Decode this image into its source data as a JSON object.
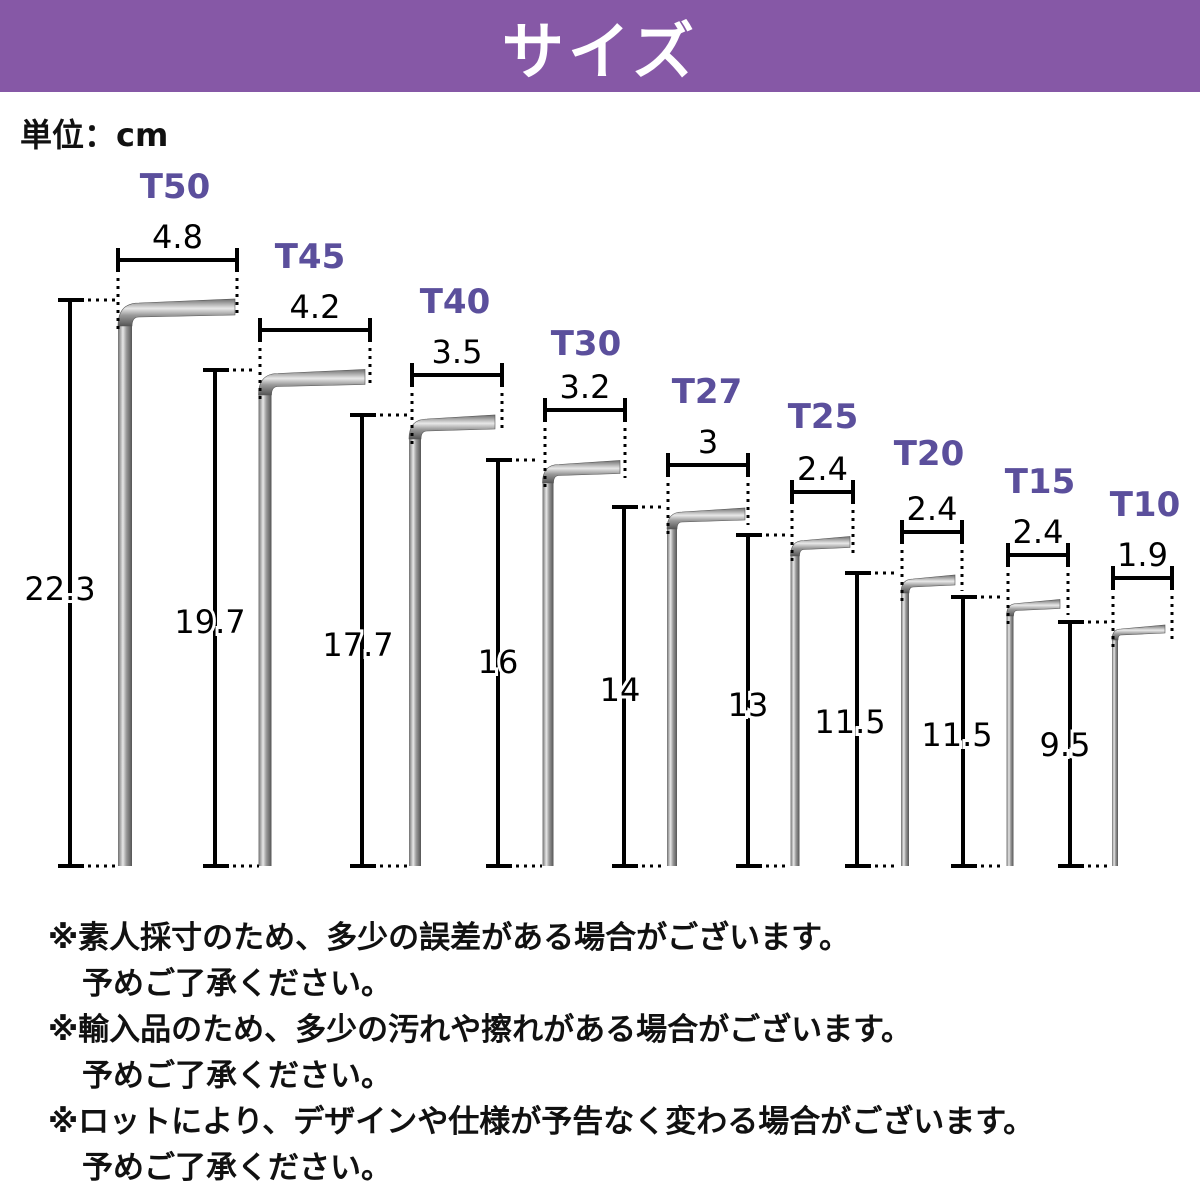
{
  "header": {
    "title": "サイズ",
    "background": "#8658a6"
  },
  "unit_label": "単位：cm",
  "label_color": "#5b4f9c",
  "keys": [
    {
      "name": "T50",
      "width": "4.8",
      "length": "22.3"
    },
    {
      "name": "T45",
      "width": "4.2",
      "length": "19.7"
    },
    {
      "name": "T40",
      "width": "3.5",
      "length": "17.7"
    },
    {
      "name": "T30",
      "width": "3.2",
      "length": "16"
    },
    {
      "name": "T27",
      "width": "3",
      "length": "14"
    },
    {
      "name": "T25",
      "width": "2.4",
      "length": "13"
    },
    {
      "name": "T20",
      "width": "2.4",
      "length": "11.5"
    },
    {
      "name": "T15",
      "width": "2.4",
      "length": "11.5"
    },
    {
      "name": "T10",
      "width": "1.9",
      "length": "9.5"
    }
  ],
  "notes": [
    {
      "line1": "※素人採寸のため、多少の誤差がある場合がございます。",
      "line2": "予めご了承ください。"
    },
    {
      "line1": "※輸入品のため、多少の汚れや擦れがある場合がございます。",
      "line2": "予めご了承ください。"
    },
    {
      "line1": "※ロットにより、デザインや仕様が予告なく変わる場合がございます。",
      "line2": "予めご了承ください。"
    }
  ]
}
